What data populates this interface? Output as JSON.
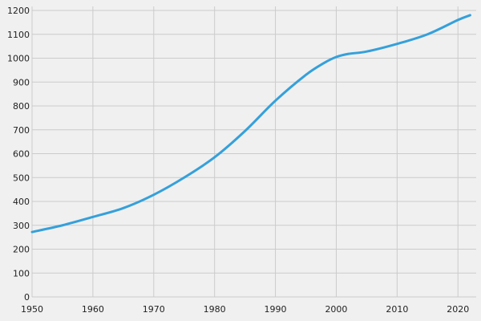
{
  "chart_data": {
    "type": "line",
    "title": "",
    "xlabel": "",
    "ylabel": "",
    "xlim": [
      1950,
      2023
    ],
    "ylim": [
      0,
      1200
    ],
    "grid": true,
    "legend": "none",
    "x_ticks": [
      "1950",
      "1960",
      "1970",
      "1980",
      "1990",
      "2000",
      "2010",
      "2020"
    ],
    "y_ticks": [
      "0",
      "100",
      "200",
      "300",
      "400",
      "500",
      "600",
      "700",
      "800",
      "900",
      "1000",
      "1100",
      "1200"
    ],
    "series": [
      {
        "color": "#35a0da",
        "x": [
          1950,
          1955,
          1960,
          1965,
          1970,
          1975,
          1980,
          1985,
          1990,
          1995,
          1998,
          2000,
          2002,
          2005,
          2010,
          2015,
          2020,
          2022
        ],
        "y": [
          272,
          300,
          335,
          372,
          428,
          500,
          585,
          695,
          822,
          930,
          980,
          1005,
          1018,
          1028,
          1060,
          1100,
          1160,
          1180
        ]
      }
    ]
  },
  "colors": {
    "background": "#f0f0f0",
    "grid": "#cbcbcb",
    "line": "#35a0da"
  }
}
